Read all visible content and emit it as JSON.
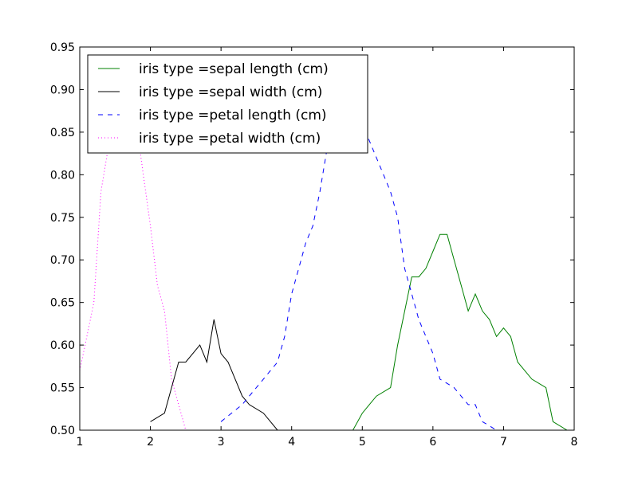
{
  "chart_data": {
    "type": "line",
    "title": "",
    "xlabel": "",
    "ylabel": "",
    "xlim": [
      1,
      8
    ],
    "ylim": [
      0.5,
      0.95
    ],
    "xticks": [
      "1",
      "2",
      "3",
      "4",
      "5",
      "6",
      "7",
      "8"
    ],
    "yticks": [
      "0.50",
      "0.55",
      "0.60",
      "0.65",
      "0.70",
      "0.75",
      "0.80",
      "0.85",
      "0.90",
      "0.95"
    ],
    "grid": false,
    "legend_position": "top-left",
    "series": [
      {
        "name": "iris type =sepal length (cm)",
        "color": "#008000",
        "style": "solid",
        "points": [
          [
            4.8,
            0.49
          ],
          [
            5.0,
            0.52
          ],
          [
            5.2,
            0.54
          ],
          [
            5.4,
            0.55
          ],
          [
            5.5,
            0.6
          ],
          [
            5.7,
            0.68
          ],
          [
            5.8,
            0.68
          ],
          [
            5.9,
            0.69
          ],
          [
            6.0,
            0.71
          ],
          [
            6.1,
            0.73
          ],
          [
            6.2,
            0.73
          ],
          [
            6.3,
            0.7
          ],
          [
            6.4,
            0.67
          ],
          [
            6.5,
            0.64
          ],
          [
            6.6,
            0.66
          ],
          [
            6.7,
            0.64
          ],
          [
            6.8,
            0.63
          ],
          [
            6.9,
            0.61
          ],
          [
            7.0,
            0.62
          ],
          [
            7.1,
            0.61
          ],
          [
            7.2,
            0.58
          ],
          [
            7.4,
            0.56
          ],
          [
            7.6,
            0.55
          ],
          [
            7.7,
            0.51
          ],
          [
            7.9,
            0.5
          ]
        ]
      },
      {
        "name": "iris type =sepal width (cm)",
        "color": "#000000",
        "style": "solid",
        "points": [
          [
            2.0,
            0.51
          ],
          [
            2.2,
            0.52
          ],
          [
            2.3,
            0.55
          ],
          [
            2.4,
            0.58
          ],
          [
            2.5,
            0.58
          ],
          [
            2.7,
            0.6
          ],
          [
            2.8,
            0.58
          ],
          [
            2.9,
            0.63
          ],
          [
            3.0,
            0.59
          ],
          [
            3.1,
            0.58
          ],
          [
            3.2,
            0.56
          ],
          [
            3.3,
            0.54
          ],
          [
            3.4,
            0.53
          ],
          [
            3.6,
            0.52
          ],
          [
            3.8,
            0.5
          ],
          [
            3.9,
            0.49
          ]
        ]
      },
      {
        "name": "iris type =petal length (cm)",
        "color": "#0000ff",
        "style": "dashed",
        "points": [
          [
            3.0,
            0.51
          ],
          [
            3.3,
            0.53
          ],
          [
            3.5,
            0.55
          ],
          [
            3.7,
            0.57
          ],
          [
            3.8,
            0.58
          ],
          [
            3.9,
            0.61
          ],
          [
            4.0,
            0.66
          ],
          [
            4.1,
            0.69
          ],
          [
            4.2,
            0.72
          ],
          [
            4.3,
            0.74
          ],
          [
            4.4,
            0.78
          ],
          [
            4.5,
            0.83
          ],
          [
            4.6,
            0.86
          ],
          [
            4.8,
            0.86
          ],
          [
            5.0,
            0.86
          ],
          [
            5.1,
            0.84
          ],
          [
            5.3,
            0.8
          ],
          [
            5.4,
            0.78
          ],
          [
            5.5,
            0.75
          ],
          [
            5.6,
            0.69
          ],
          [
            5.7,
            0.66
          ],
          [
            5.8,
            0.63
          ],
          [
            6.0,
            0.59
          ],
          [
            6.1,
            0.56
          ],
          [
            6.3,
            0.55
          ],
          [
            6.5,
            0.53
          ],
          [
            6.6,
            0.53
          ],
          [
            6.7,
            0.51
          ],
          [
            6.9,
            0.5
          ]
        ]
      },
      {
        "name": "iris type =petal width (cm)",
        "color": "#ff00ff",
        "style": "dotted",
        "points": [
          [
            1.0,
            0.57
          ],
          [
            1.1,
            0.61
          ],
          [
            1.2,
            0.65
          ],
          [
            1.3,
            0.78
          ],
          [
            1.4,
            0.83
          ],
          [
            1.5,
            0.86
          ],
          [
            1.8,
            0.86
          ],
          [
            1.9,
            0.8
          ],
          [
            2.0,
            0.74
          ],
          [
            2.1,
            0.67
          ],
          [
            2.2,
            0.64
          ],
          [
            2.3,
            0.56
          ],
          [
            2.4,
            0.53
          ],
          [
            2.5,
            0.5
          ]
        ]
      }
    ]
  }
}
